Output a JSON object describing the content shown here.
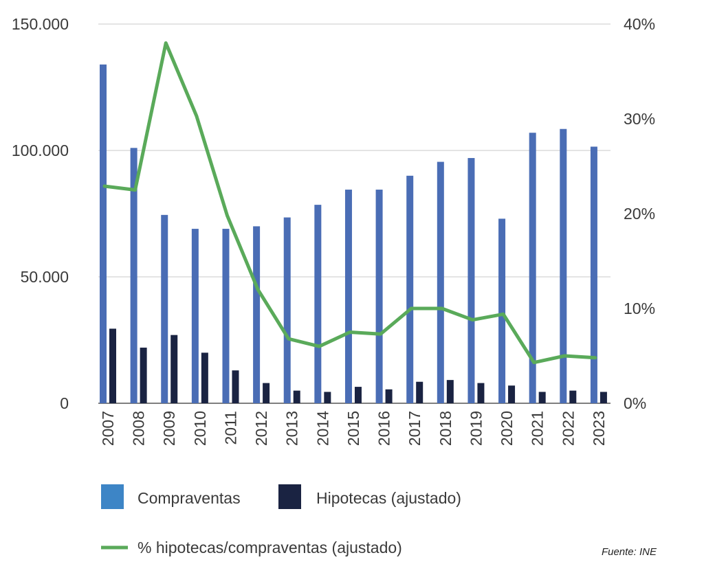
{
  "chart_data": {
    "type": "bar",
    "title": "",
    "xlabel": "",
    "ylabel": "",
    "categories": [
      "2007",
      "2008",
      "2009",
      "2010",
      "2011",
      "2012",
      "2013",
      "2014",
      "2015",
      "2016",
      "2017",
      "2018",
      "2019",
      "2020",
      "2021",
      "2022",
      "2023"
    ],
    "series": [
      {
        "name": "Compraventas",
        "type": "bar",
        "axis": "left",
        "color": "#4a6db5",
        "values": [
          134000,
          101000,
          74500,
          69000,
          69000,
          70000,
          73500,
          78500,
          84500,
          84500,
          90000,
          95500,
          97000,
          73000,
          107000,
          108500,
          101500
        ]
      },
      {
        "name": "Hipotecas (ajustado)",
        "type": "bar",
        "axis": "left",
        "color": "#1a2342",
        "values": [
          29500,
          22000,
          27000,
          20000,
          13000,
          8000,
          5000,
          4500,
          6500,
          5500,
          8500,
          9200,
          8000,
          7000,
          4500,
          5000,
          4500
        ]
      },
      {
        "name": "% hipotecas/compraventas (ajustado)",
        "type": "line",
        "axis": "right",
        "color": "#5aaa5a",
        "values": [
          22.9,
          22.5,
          38.0,
          30.3,
          19.8,
          12.0,
          6.8,
          6.0,
          7.5,
          7.3,
          10.0,
          10.0,
          8.8,
          9.4,
          4.3,
          5.0,
          4.8
        ]
      }
    ],
    "y_left": {
      "lim": [
        0,
        150000
      ],
      "ticks": [
        0,
        50000,
        100000,
        150000
      ],
      "tick_labels": [
        "0",
        "50.000",
        "100.000",
        "150.000"
      ]
    },
    "y_right": {
      "lim": [
        0,
        40
      ],
      "ticks": [
        0,
        10,
        20,
        30,
        40
      ],
      "tick_labels": [
        "0%",
        "10%",
        "20%",
        "30%",
        "40%"
      ]
    },
    "grid": true,
    "legend_position": "bottom",
    "legend_colors": {
      "Compraventas": "#3d85c6",
      "Hipotecas (ajustado)": "#1a2342",
      "% hipotecas/compraventas (ajustado)": "#5aaa5a"
    },
    "source": "Fuente: INE"
  }
}
